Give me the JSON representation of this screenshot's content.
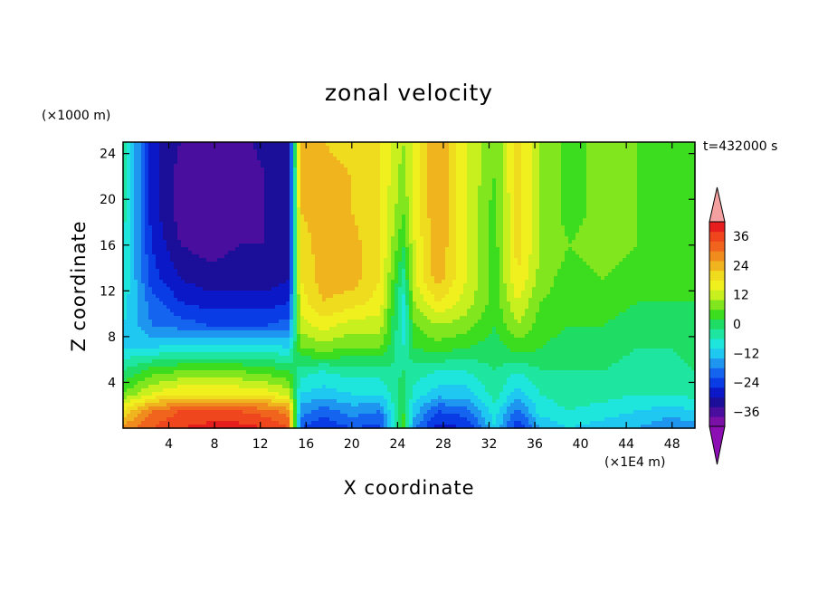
{
  "chart_data": {
    "type": "heatmap",
    "title": "zonal velocity",
    "xlabel": "X coordinate",
    "ylabel": "Z coordinate",
    "x_unit_label": "(×1E4 m)",
    "y_unit_label": "(×1000 m)",
    "annotation": "t=432000 s",
    "xlim": [
      0,
      50
    ],
    "ylim": [
      0,
      25
    ],
    "x_ticks": [
      4,
      8,
      12,
      16,
      20,
      24,
      28,
      32,
      36,
      40,
      44,
      48
    ],
    "y_ticks": [
      4,
      8,
      12,
      16,
      20,
      24
    ],
    "colorbar": {
      "min": -42,
      "max": 42,
      "step": 4,
      "tick_values": [
        36,
        24,
        12,
        0,
        -12,
        -24,
        -36
      ],
      "tick_labels": [
        "36",
        "24",
        "12",
        "0",
        "−12",
        "−24",
        "−36"
      ],
      "over_color": "#f4a0a0",
      "under_color": "#8c0fb4",
      "colors": [
        "#7a10a6",
        "#4a0e9e",
        "#1b0f9a",
        "#0a18c8",
        "#0a3ce6",
        "#1464f0",
        "#1e96f0",
        "#1ec8f0",
        "#1ee6dc",
        "#1ee6a0",
        "#1edc64",
        "#3cdc1e",
        "#82e61e",
        "#c8f01e",
        "#f0f01e",
        "#f0dc1e",
        "#f0b41e",
        "#f08c1e",
        "#f0641e",
        "#f0461e",
        "#e61e1e"
      ]
    },
    "x": [
      0,
      2.5,
      5,
      7.5,
      10,
      12.5,
      14.5,
      15.5,
      17.5,
      20,
      22.5,
      24.5,
      25.5,
      27.5,
      30,
      32.5,
      34.5,
      36.5,
      39,
      42,
      45,
      48,
      50
    ],
    "z": [
      0,
      1.5,
      3,
      5,
      7,
      9,
      11,
      13,
      16,
      19,
      22,
      25
    ],
    "values": [
      [
        28,
        34,
        38,
        40,
        40,
        38,
        34,
        -22,
        -26,
        -22,
        -24,
        4,
        -18,
        -28,
        -26,
        -10,
        -26,
        -14,
        -10,
        -12,
        -14,
        -18,
        -16
      ],
      [
        18,
        30,
        34,
        34,
        34,
        32,
        28,
        -16,
        -20,
        -16,
        -18,
        2,
        -12,
        -22,
        -20,
        -8,
        -20,
        -8,
        -6,
        -8,
        -10,
        -12,
        -10
      ],
      [
        6,
        14,
        18,
        18,
        18,
        16,
        12,
        -10,
        -12,
        -10,
        -10,
        0,
        -8,
        -12,
        -12,
        -4,
        -12,
        -6,
        -4,
        -4,
        -6,
        -6,
        -4
      ],
      [
        -2,
        4,
        6,
        6,
        6,
        4,
        2,
        -4,
        -6,
        -4,
        -4,
        -2,
        -4,
        -6,
        -6,
        -2,
        -6,
        -2,
        -2,
        -2,
        -4,
        -4,
        -2
      ],
      [
        -10,
        -10,
        -8,
        -8,
        -8,
        -8,
        -10,
        6,
        8,
        6,
        6,
        -6,
        2,
        4,
        2,
        0,
        4,
        2,
        0,
        0,
        -2,
        -2,
        0
      ],
      [
        -10,
        -18,
        -20,
        -22,
        -22,
        -22,
        -20,
        12,
        16,
        12,
        12,
        -8,
        6,
        10,
        8,
        2,
        10,
        4,
        2,
        2,
        0,
        0,
        2
      ],
      [
        -8,
        -20,
        -26,
        -28,
        -28,
        -28,
        -26,
        16,
        22,
        20,
        16,
        -8,
        10,
        18,
        12,
        4,
        14,
        6,
        4,
        4,
        2,
        2,
        2
      ],
      [
        -6,
        -24,
        -30,
        -32,
        -32,
        -32,
        -30,
        18,
        24,
        24,
        18,
        -4,
        14,
        24,
        14,
        4,
        18,
        8,
        4,
        6,
        4,
        2,
        2
      ],
      [
        -6,
        -26,
        -34,
        -36,
        -34,
        -34,
        -32,
        20,
        24,
        24,
        18,
        2,
        14,
        26,
        14,
        4,
        20,
        10,
        6,
        8,
        6,
        2,
        2
      ],
      [
        -4,
        -28,
        -36,
        -38,
        -36,
        -34,
        -32,
        22,
        24,
        22,
        18,
        6,
        16,
        26,
        14,
        4,
        20,
        10,
        4,
        8,
        6,
        2,
        2
      ],
      [
        -4,
        -28,
        -36,
        -38,
        -38,
        -34,
        -32,
        24,
        24,
        22,
        18,
        8,
        16,
        26,
        14,
        6,
        20,
        10,
        4,
        8,
        6,
        2,
        2
      ],
      [
        -4,
        -28,
        -34,
        -36,
        -36,
        -32,
        -30,
        24,
        22,
        20,
        18,
        10,
        16,
        26,
        14,
        6,
        20,
        10,
        4,
        8,
        6,
        2,
        2
      ]
    ]
  }
}
